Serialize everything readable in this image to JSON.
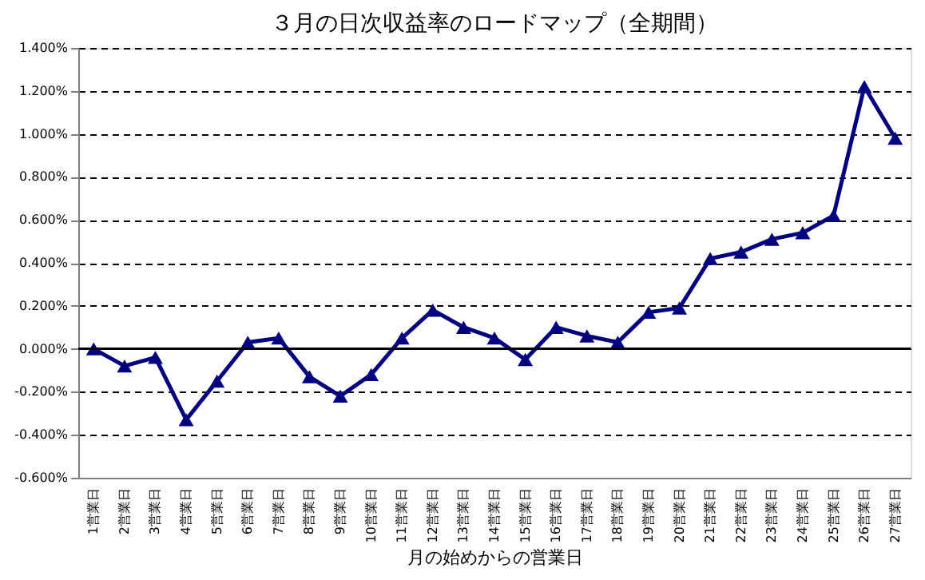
{
  "chart_data": {
    "type": "line",
    "title": "３月の日次収益率のロードマップ（全期間）",
    "xlabel": "月の始めからの営業日",
    "categories": [
      "1営業日",
      "2営業日",
      "3営業日",
      "4営業日",
      "5営業日",
      "6営業日",
      "7営業日",
      "8営業日",
      "9営業日",
      "10営業日",
      "11営業日",
      "12営業日",
      "13営業日",
      "14営業日",
      "15営業日",
      "16営業日",
      "17営業日",
      "18営業日",
      "19営業日",
      "20営業日",
      "21営業日",
      "22営業日",
      "23営業日",
      "24営業日",
      "25営業日",
      "26営業日",
      "27営業日"
    ],
    "series": [
      {
        "color": "#000080",
        "values": [
          0.0,
          -0.08,
          -0.04,
          -0.33,
          -0.15,
          0.03,
          0.05,
          -0.13,
          -0.22,
          -0.12,
          0.05,
          0.18,
          0.1,
          0.05,
          -0.05,
          0.1,
          0.06,
          0.03,
          0.17,
          0.19,
          0.42,
          0.45,
          0.51,
          0.54,
          0.62,
          1.22,
          0.98
        ]
      }
    ],
    "ylim": [
      -0.6,
      1.4
    ],
    "yticks": [
      {
        "value": -0.6,
        "label": "-0.600%"
      },
      {
        "value": -0.4,
        "label": "-0.400%"
      },
      {
        "value": -0.2,
        "label": "-0.200%"
      },
      {
        "value": 0,
        "label": "0.000%"
      },
      {
        "value": 0.2,
        "label": "0.200%"
      },
      {
        "value": 0.4,
        "label": "0.400%"
      },
      {
        "value": 0.6,
        "label": "0.600%"
      },
      {
        "value": 0.8,
        "label": "0.800%"
      },
      {
        "value": 1.0,
        "label": "1.000%"
      },
      {
        "value": 1.2,
        "label": "1.200%"
      },
      {
        "value": 1.4,
        "label": "1.400%"
      }
    ],
    "ref_lines": [
      {
        "axis": "y",
        "value": 0,
        "color": "#000000"
      }
    ],
    "grid": "y",
    "marker": "triangle",
    "line_style": "solid"
  }
}
